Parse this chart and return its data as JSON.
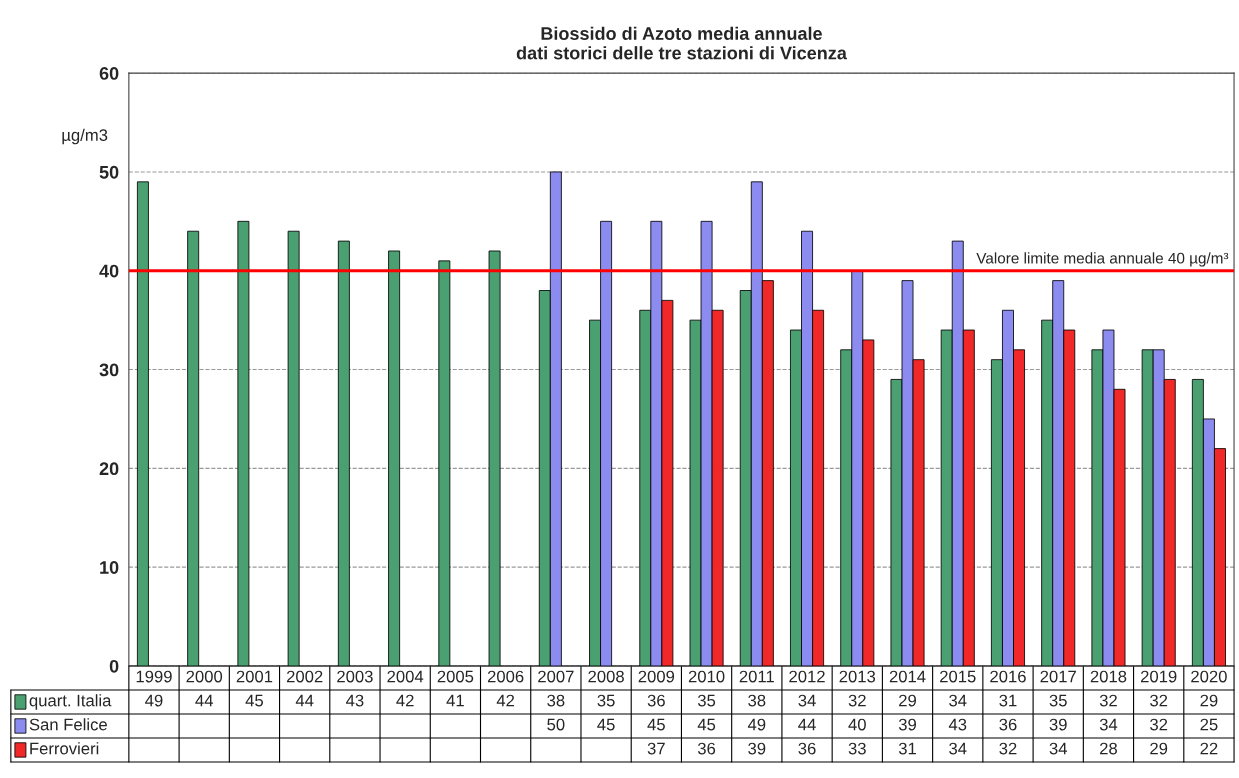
{
  "chart_data": {
    "type": "bar",
    "title": "Biossido di Azoto media annuale\ndati storici delle tre stazioni di Vicenza",
    "ylabel": "µg/m3",
    "categories": [
      "1999",
      "2000",
      "2001",
      "2002",
      "2003",
      "2004",
      "2005",
      "2006",
      "2007",
      "2008",
      "2009",
      "2010",
      "2011",
      "2012",
      "2013",
      "2014",
      "2015",
      "2016",
      "2017",
      "2018",
      "2019",
      "2020"
    ],
    "series": [
      {
        "name": "quart. Italia",
        "color": "#4aa070",
        "values": [
          49,
          44,
          45,
          44,
          43,
          42,
          41,
          42,
          38,
          35,
          36,
          35,
          38,
          34,
          32,
          29,
          34,
          31,
          35,
          32,
          32,
          29
        ]
      },
      {
        "name": "San Felice",
        "color": "#8c8cf0",
        "values": [
          null,
          null,
          null,
          null,
          null,
          null,
          null,
          null,
          50,
          45,
          45,
          45,
          49,
          44,
          40,
          39,
          43,
          36,
          39,
          34,
          32,
          25
        ]
      },
      {
        "name": "Ferrovieri",
        "color": "#f02828",
        "values": [
          null,
          null,
          null,
          null,
          null,
          null,
          null,
          null,
          null,
          null,
          37,
          36,
          39,
          36,
          33,
          31,
          34,
          32,
          34,
          28,
          29,
          22
        ]
      }
    ],
    "ylim": [
      0,
      60
    ],
    "yticks": [
      0,
      10,
      20,
      30,
      40,
      50,
      60
    ],
    "grid": "y",
    "data_labels": true,
    "legend": "bottom",
    "ref_lines": [
      {
        "axis": "y",
        "value": 40,
        "label": "Valore limite media annuale 40 µg/m³",
        "color": "#ff0000"
      }
    ]
  }
}
